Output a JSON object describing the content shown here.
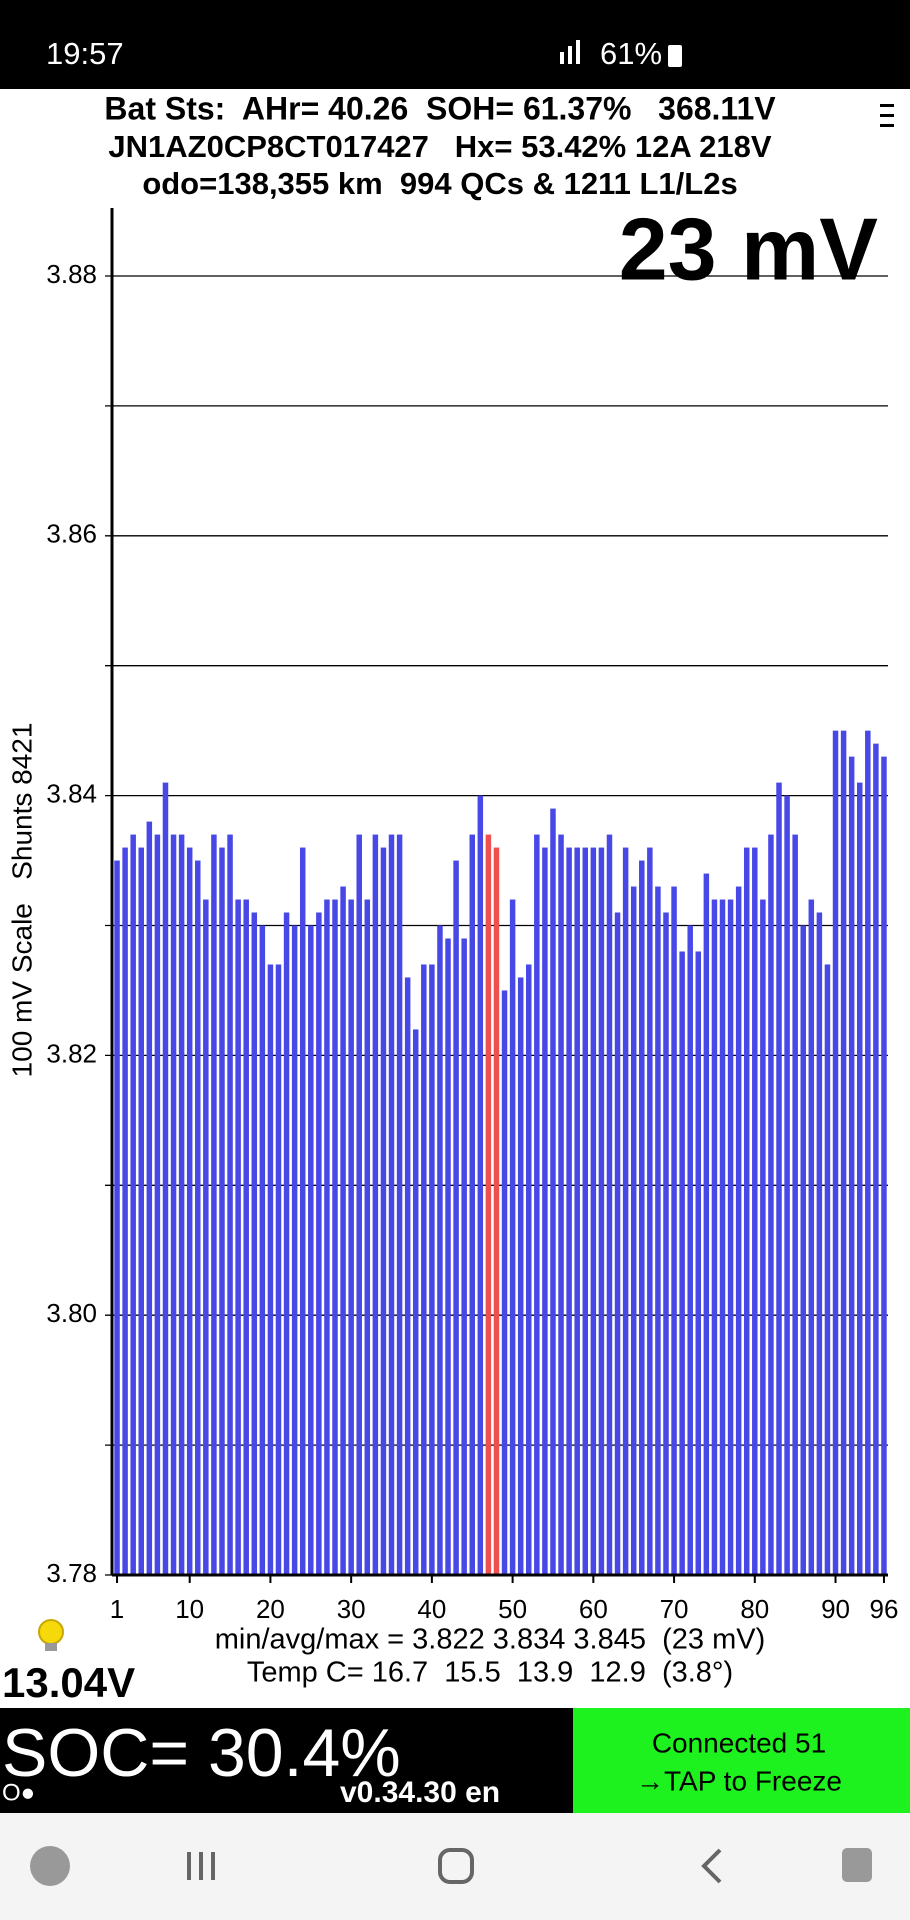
{
  "status_bar": {
    "time": "19:57",
    "battery": "61%"
  },
  "header": {
    "lines": [
      "Bat Sts:  AHr= 40.26  SOH= 61.37%   368.11V",
      "JN1AZ0CP8CT017427   Hx= 53.42% 12A 218V",
      "odo=138,355 km  994 QCs & 1211 L1/L2s"
    ],
    "cell_spread": "23 mV"
  },
  "chart_data": {
    "type": "bar",
    "y_label": "100 mV Scale   Shunts 8421",
    "x": [
      1,
      2,
      3,
      4,
      5,
      6,
      7,
      8,
      9,
      10,
      11,
      12,
      13,
      14,
      15,
      16,
      17,
      18,
      19,
      20,
      21,
      22,
      23,
      24,
      25,
      26,
      27,
      28,
      29,
      30,
      31,
      32,
      33,
      34,
      35,
      36,
      37,
      38,
      39,
      40,
      41,
      42,
      43,
      44,
      45,
      46,
      47,
      48,
      49,
      50,
      51,
      52,
      53,
      54,
      55,
      56,
      57,
      58,
      59,
      60,
      61,
      62,
      63,
      64,
      65,
      66,
      67,
      68,
      69,
      70,
      71,
      72,
      73,
      74,
      75,
      76,
      77,
      78,
      79,
      80,
      81,
      82,
      83,
      84,
      85,
      86,
      87,
      88,
      89,
      90,
      91,
      92,
      93,
      94,
      95,
      96
    ],
    "values": [
      3.835,
      3.836,
      3.837,
      3.836,
      3.838,
      3.837,
      3.841,
      3.837,
      3.837,
      3.836,
      3.835,
      3.832,
      3.837,
      3.836,
      3.837,
      3.832,
      3.832,
      3.831,
      3.83,
      3.827,
      3.827,
      3.831,
      3.83,
      3.836,
      3.83,
      3.831,
      3.832,
      3.832,
      3.833,
      3.832,
      3.837,
      3.832,
      3.837,
      3.836,
      3.837,
      3.837,
      3.826,
      3.822,
      3.827,
      3.827,
      3.83,
      3.829,
      3.835,
      3.829,
      3.837,
      3.84,
      3.837,
      3.836,
      3.825,
      3.832,
      3.826,
      3.827,
      3.837,
      3.836,
      3.839,
      3.837,
      3.836,
      3.836,
      3.836,
      3.836,
      3.836,
      3.837,
      3.831,
      3.836,
      3.833,
      3.835,
      3.836,
      3.833,
      3.831,
      3.833,
      3.828,
      3.83,
      3.828,
      3.834,
      3.832,
      3.832,
      3.832,
      3.833,
      3.836,
      3.836,
      3.832,
      3.837,
      3.841,
      3.84,
      3.837,
      3.83,
      3.832,
      3.831,
      3.827,
      3.845,
      3.845,
      3.843,
      3.841,
      3.845,
      3.844,
      3.843
    ],
    "colors": [
      "#4848e6",
      "#4848e6",
      "#4848e6",
      "#4848e6",
      "#4848e6",
      "#4848e6",
      "#4848e6",
      "#4848e6",
      "#4848e6",
      "#4848e6",
      "#4848e6",
      "#4848e6",
      "#4848e6",
      "#4848e6",
      "#4848e6",
      "#4848e6",
      "#4848e6",
      "#4848e6",
      "#4848e6",
      "#4848e6",
      "#4848e6",
      "#4848e6",
      "#4848e6",
      "#4848e6",
      "#4848e6",
      "#4848e6",
      "#4848e6",
      "#4848e6",
      "#4848e6",
      "#4848e6",
      "#4848e6",
      "#4848e6",
      "#4848e6",
      "#4848e6",
      "#4848e6",
      "#4848e6",
      "#4848e6",
      "#4848e6",
      "#4848e6",
      "#4848e6",
      "#4848e6",
      "#4848e6",
      "#4848e6",
      "#4848e6",
      "#4848e6",
      "#4848e6",
      "#ee4f4f",
      "#ee4f4f",
      "#4848e6",
      "#4848e6",
      "#4848e6",
      "#4848e6",
      "#4848e6",
      "#4848e6",
      "#4848e6",
      "#4848e6",
      "#4848e6",
      "#4848e6",
      "#4848e6",
      "#4848e6",
      "#4848e6",
      "#4848e6",
      "#4848e6",
      "#4848e6",
      "#4848e6",
      "#4848e6",
      "#4848e6",
      "#4848e6",
      "#4848e6",
      "#4848e6",
      "#4848e6",
      "#4848e6",
      "#4848e6",
      "#4848e6",
      "#4848e6",
      "#4848e6",
      "#4848e6",
      "#4848e6",
      "#4848e6",
      "#4848e6",
      "#4848e6",
      "#4848e6",
      "#4848e6",
      "#4848e6",
      "#4848e6",
      "#4848e6",
      "#4848e6",
      "#4848e6",
      "#4848e6",
      "#4848e6",
      "#4848e6",
      "#4848e6",
      "#4848e6",
      "#4848e6",
      "#4848e6",
      "#4848e6"
    ],
    "xlim": [
      0.5,
      96.5
    ],
    "xticks": [
      1,
      10,
      20,
      30,
      40,
      50,
      60,
      70,
      80,
      90,
      96
    ],
    "ylim": [
      3.78,
      3.88
    ],
    "yticks": [
      3.78,
      {
        "value": 3.8,
        "label": "3.80"
      },
      3.82,
      3.84,
      3.86,
      3.88
    ],
    "minor_yticks": [
      3.79,
      3.81,
      3.83,
      3.85,
      3.87
    ],
    "grid": true
  },
  "footer": {
    "stats": "min/avg/max = 3.822 3.834 3.845  (23 mV)",
    "temps": "Temp C= 16.7  15.5  13.9  12.9  (3.8°)",
    "aux_voltage": "13.04V",
    "soc": "SOC= 30.4%",
    "indicator": "O●",
    "version": "v0.34.30 en",
    "connection": "Connected 51",
    "action": "→TAP to Freeze"
  }
}
